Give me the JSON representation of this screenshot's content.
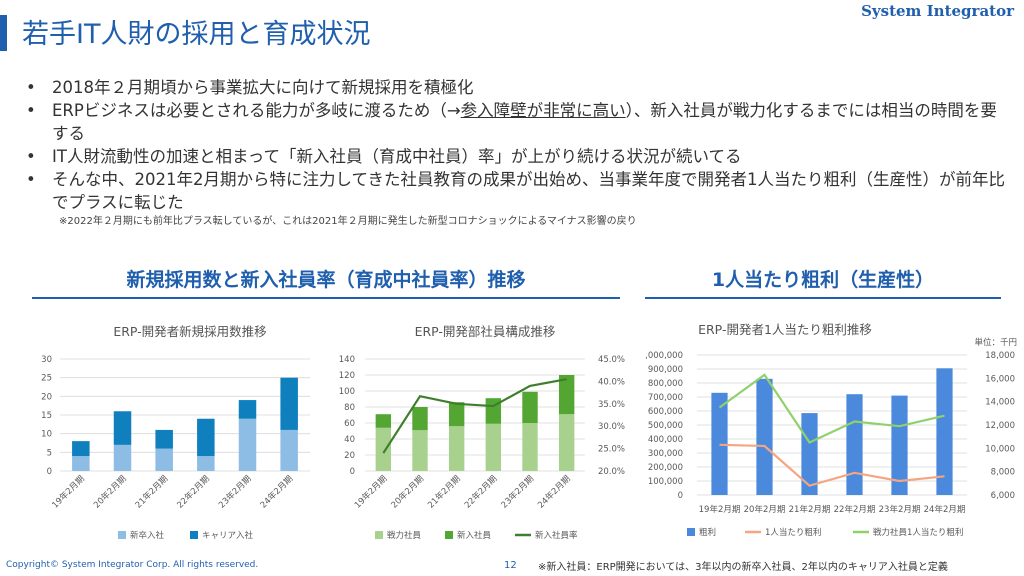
{
  "header": {
    "title": "若手IT人財の採用と育成状況",
    "brand": "System Integrator"
  },
  "bullets": [
    {
      "text": "2018年２月期頃から事業拡大に向けて新規採用を積極化"
    },
    {
      "text_before": "ERPビジネスは必要とされる能力が多岐に渡るため（→",
      "text_underlined": "参入障壁が非常に高い",
      "text_after": "）、新入社員が戦力化するまでには相当の時間を要する"
    },
    {
      "text": "IT人財流動性の加速と相まって「新入社員（育成中社員）率」が上がり続ける状況が続いてる"
    },
    {
      "text": "そんな中、2021年2月期から特に注力してきた社員教育の成果が出始め、当事業年度で開発者1人当たり粗利（生産性）が前年比でプラスに転じた"
    }
  ],
  "note": "※2022年２月期にも前年比プラス転しているが、これは2021年２月期に発生した新型コロナショックによるマイナス影響の戻り",
  "sections": {
    "left_title": "新規採用数と新入社員率（育成中社員率）推移",
    "right_title": "1人当たり粗利（生産性）"
  },
  "colors": {
    "brand_blue": "#1f5fae",
    "light_blue": "#8dbde4",
    "dark_blue": "#0f80bd",
    "light_green": "#a9d18e",
    "green": "#53a632",
    "dark_green": "#3d7f2c",
    "bar_blue": "#4a89dc",
    "salmon": "#f4a582",
    "lime": "#8fd16a"
  },
  "chart_data": [
    {
      "type": "bar",
      "stacked": true,
      "title": "ERP-開発者新規採用数推移",
      "categories": [
        "19年2月期",
        "20年2月期",
        "21年2月期",
        "22年2月期",
        "23年2月期",
        "24年2月期"
      ],
      "series": [
        {
          "name": "新卒入社",
          "values": [
            4,
            7,
            6,
            4,
            14,
            11
          ]
        },
        {
          "name": "キャリア入社",
          "values": [
            4,
            9,
            5,
            10,
            5,
            14
          ]
        }
      ],
      "ylim": [
        0,
        30
      ],
      "yticks": [
        0,
        5,
        10,
        15,
        20,
        25,
        30
      ],
      "legend": "bottom"
    },
    {
      "type": "bar",
      "stacked": true,
      "title": "ERP-開発部社員構成推移",
      "categories": [
        "19年2月期",
        "20年2月期",
        "21年2月期",
        "22年2月期",
        "23年2月期",
        "24年2月期"
      ],
      "series": [
        {
          "name": "戦力社員",
          "values": [
            54,
            51,
            56,
            59,
            60,
            71
          ]
        },
        {
          "name": "新入社員",
          "values": [
            17,
            29,
            30,
            32,
            39,
            49
          ]
        },
        {
          "name": "新入社員率",
          "axis": "right",
          "values": [
            24.0,
            36.7,
            35.0,
            34.5,
            39.0,
            40.5
          ]
        }
      ],
      "ylim": [
        0,
        140
      ],
      "yticks": [
        0,
        20,
        40,
        60,
        80,
        100,
        120,
        140
      ],
      "y2lim": [
        20,
        45
      ],
      "y2ticks": [
        "20.0%",
        "25.0%",
        "30.0%",
        "35.0%",
        "40.0%",
        "45.0%"
      ],
      "legend": "bottom"
    },
    {
      "type": "bar",
      "title": "ERP-開発者1人当たり粗利推移",
      "unit_label": "単位：千円",
      "categories": [
        "19年2月期",
        "20年2月期",
        "21年2月期",
        "22年2月期",
        "23年2月期",
        "24年2月期"
      ],
      "series": [
        {
          "name": "粗利",
          "values": [
            730000,
            830000,
            585000,
            720000,
            710000,
            905000
          ]
        },
        {
          "name": "1人当たり粗利",
          "axis": "right",
          "values": [
            10300,
            10200,
            6800,
            7900,
            7200,
            7600
          ]
        },
        {
          "name": "戦力社員1人当たり粗利",
          "axis": "right",
          "values": [
            13500,
            16300,
            10500,
            12300,
            11900,
            12800
          ]
        }
      ],
      "ylim": [
        0,
        1000000
      ],
      "yticks": [
        "0",
        "100,000",
        "200,000",
        "300,000",
        "400,000",
        "500,000",
        "600,000",
        "700,000",
        "800,000",
        "900,000",
        "1,000,000"
      ],
      "y2lim": [
        6000,
        18000
      ],
      "y2ticks": [
        "6,000",
        "8,000",
        "10,000",
        "12,000",
        "14,000",
        "16,000",
        "18,000"
      ],
      "legend": "bottom"
    }
  ],
  "footer": {
    "copyright": "Copyright© System Integrator Corp. All rights reserved.",
    "page": "12",
    "note": "※新入社員：ERP開発においては、3年以内の新卒入社員、2年以内のキャリア入社員と定義"
  }
}
